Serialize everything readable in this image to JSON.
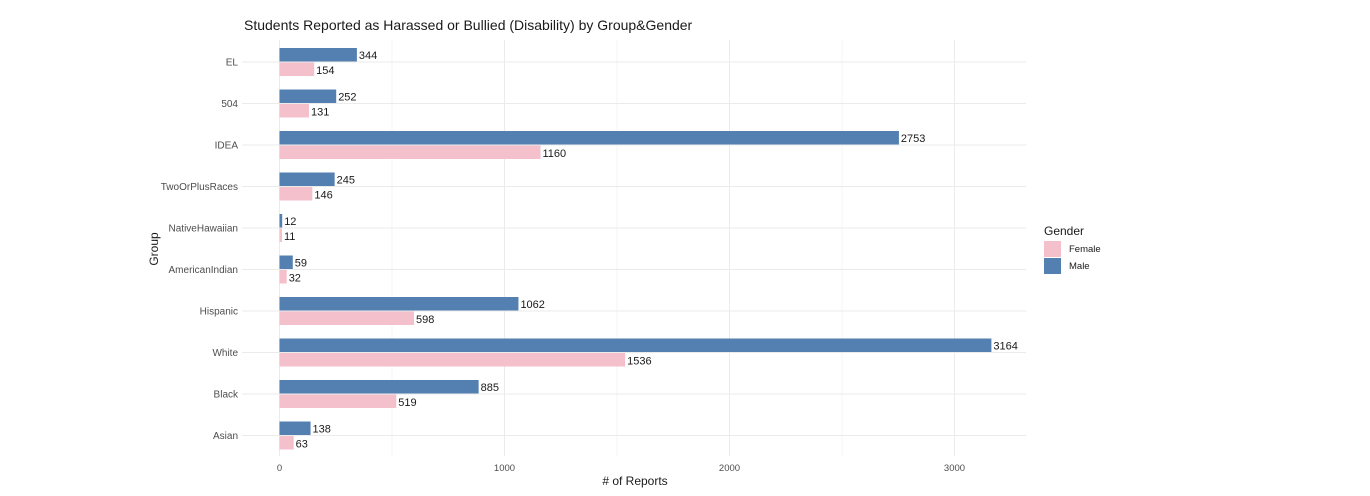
{
  "chart_data": {
    "type": "bar",
    "orientation": "horizontal",
    "title": "Students Reported as Harassed or Bullied (Disability) by Group&Gender",
    "xlabel": "# of Reports",
    "ylabel": "Group",
    "categories": [
      "EL",
      "504",
      "IDEA",
      "TwoOrPlusRaces",
      "NativeHawaiian",
      "AmericanIndian",
      "Hispanic",
      "White",
      "Black",
      "Asian"
    ],
    "series": [
      {
        "name": "Male",
        "color": "#5480b1",
        "values": [
          344,
          252,
          2753,
          245,
          12,
          59,
          1062,
          3164,
          885,
          138
        ]
      },
      {
        "name": "Female",
        "color": "#f4c0cc",
        "values": [
          154,
          131,
          1160,
          146,
          11,
          32,
          598,
          1536,
          519,
          63
        ]
      }
    ],
    "x_ticks": [
      0,
      1000,
      2000,
      3000
    ],
    "xlim": [
      -165,
      3310
    ],
    "grid": true,
    "legend": {
      "title": "Gender",
      "entries": [
        "Female",
        "Male"
      ],
      "placement": "right"
    }
  }
}
